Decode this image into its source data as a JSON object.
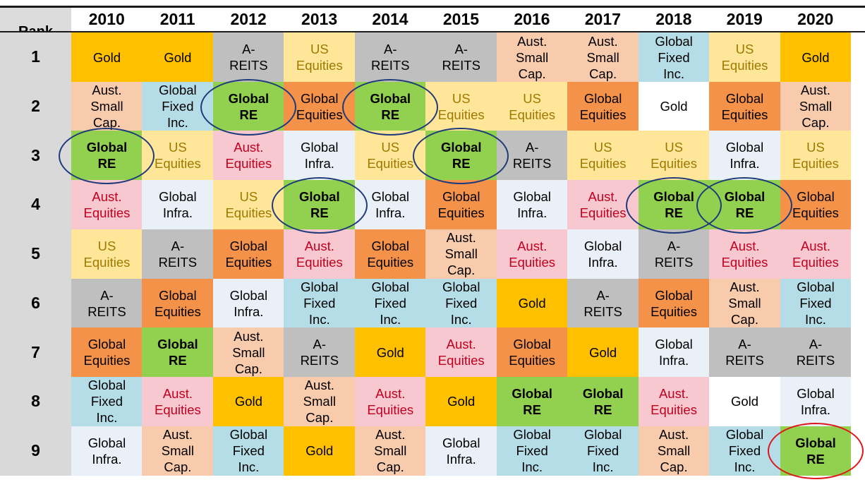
{
  "header": {
    "rank_label": "Rank",
    "years": [
      "2010",
      "2011",
      "2012",
      "2013",
      "2014",
      "2015",
      "2016",
      "2017",
      "2018",
      "2019",
      "2020"
    ]
  },
  "ranks": [
    "1",
    "2",
    "3",
    "4",
    "5",
    "6",
    "7",
    "8",
    "9"
  ],
  "asset_styles": {
    "Gold": {
      "bg": "#ffc000",
      "fg": "#000000",
      "bold": false
    },
    "A-\nREITS": {
      "bg": "#bfbfbf",
      "fg": "#000000",
      "bold": false
    },
    "US\nEquities": {
      "bg": "#ffe699",
      "fg": "#9c7a00",
      "bold": false
    },
    "Aust.\nSmall\nCap.": {
      "bg": "#f8cbad",
      "fg": "#000000",
      "bold": false
    },
    "Global\nFixed\nInc.": {
      "bg": "#b4dde7",
      "fg": "#000000",
      "bold": false
    },
    "Global\nRE": {
      "bg": "#92d050",
      "fg": "#000000",
      "bold": true
    },
    "Global\nEquities": {
      "bg": "#f4924a",
      "fg": "#000000",
      "bold": false
    },
    "Aust.\nEquities": {
      "bg": "#f8c8d0",
      "fg": "#c0001f",
      "bold": false
    },
    "Global\nInfra.": {
      "bg": "#eaf0f8",
      "fg": "#000000",
      "bold": false
    },
    "Gold ": {
      "bg": "#ffffff",
      "fg": "#000000",
      "bold": false
    }
  },
  "chart_data": {
    "type": "table",
    "title": "",
    "columns": [
      "Rank",
      "2010",
      "2011",
      "2012",
      "2013",
      "2014",
      "2015",
      "2016",
      "2017",
      "2018",
      "2019",
      "2020"
    ],
    "rows": [
      [
        "1",
        "Gold",
        "Gold",
        "A-\nREITS",
        "US\nEquities",
        "A-\nREITS",
        "A-\nREITS",
        "Aust.\nSmall\nCap.",
        "Aust.\nSmall\nCap.",
        "Global\nFixed\nInc.",
        "US\nEquities",
        "Gold"
      ],
      [
        "2",
        "Aust.\nSmall\nCap.",
        "Global\nFixed\nInc.",
        "Global\nRE",
        "Global\nEquities",
        "Global\nRE",
        "US\nEquities",
        "US\nEquities",
        "Global\nEquities",
        "Gold ",
        "Global\nEquities",
        "Aust.\nSmall\nCap."
      ],
      [
        "3",
        "Global\nRE",
        "US\nEquities",
        "Aust.\nEquities",
        "Global\nInfra.",
        "US\nEquities",
        "Global\nRE",
        "A-\nREITS",
        "US\nEquities",
        "US\nEquities",
        "Global\nInfra.",
        "US\nEquities"
      ],
      [
        "4",
        "Aust.\nEquities",
        "Global\nInfra.",
        "US\nEquities",
        "Global\nRE",
        "Global\nInfra.",
        "Global\nEquities",
        "Global\nInfra.",
        "Aust.\nEquities",
        "Global\nRE",
        "Global\nRE",
        "Global\nEquities"
      ],
      [
        "5",
        "US\nEquities",
        "A-\nREITS",
        "Global\nEquities",
        "Aust.\nEquities",
        "Global\nEquities",
        "Aust.\nSmall\nCap.",
        "Aust.\nEquities",
        "Global\nInfra.",
        "A-\nREITS",
        "Aust.\nEquities",
        "Aust.\nEquities"
      ],
      [
        "6",
        "A-\nREITS",
        "Global\nEquities",
        "Global\nInfra.",
        "Global\nFixed\nInc.",
        "Global\nFixed\nInc.",
        "Global\nFixed\nInc.",
        "Gold",
        "A-\nREITS",
        "Global\nEquities",
        "Aust.\nSmall\nCap.",
        "Global\nFixed\nInc."
      ],
      [
        "7",
        "Global\nEquities",
        "Global\nRE",
        "Aust.\nSmall\nCap.",
        "A-\nREITS",
        "Gold",
        "Aust.\nEquities",
        "Global\nEquities",
        "Gold",
        "Global\nInfra.",
        "A-\nREITS",
        "A-\nREITS"
      ],
      [
        "8",
        "Global\nFixed\nInc.",
        "Aust.\nEquities",
        "Gold",
        "Aust.\nSmall\nCap.",
        "Aust.\nEquities",
        "Gold",
        "Global\nRE",
        "Global\nRE",
        "Aust.\nEquities",
        "Gold ",
        "Global\nInfra."
      ],
      [
        "9",
        "Global\nInfra.",
        "Aust.\nSmall\nCap.",
        "Global\nFixed\nInc.",
        "Gold",
        "Aust.\nSmall\nCap.",
        "Global\nInfra.",
        "Global\nFixed\nInc.",
        "Global\nFixed\nInc.",
        "Aust.\nSmall\nCap.",
        "Global\nFixed\nInc.",
        "Global\nRE"
      ]
    ],
    "circled_cells": [
      {
        "year": "2010",
        "rank": 3,
        "color": "#1f3a7a"
      },
      {
        "year": "2012",
        "rank": 2,
        "color": "#1f3a7a"
      },
      {
        "year": "2013",
        "rank": 4,
        "color": "#1f3a7a"
      },
      {
        "year": "2014",
        "rank": 2,
        "color": "#1f3a7a"
      },
      {
        "year": "2015",
        "rank": 3,
        "color": "#1f3a7a"
      },
      {
        "year": "2018",
        "rank": 4,
        "color": "#1f3a7a"
      },
      {
        "year": "2019",
        "rank": 4,
        "color": "#1f3a7a"
      },
      {
        "year": "2020",
        "rank": 9,
        "color": "#e0161b"
      }
    ]
  }
}
